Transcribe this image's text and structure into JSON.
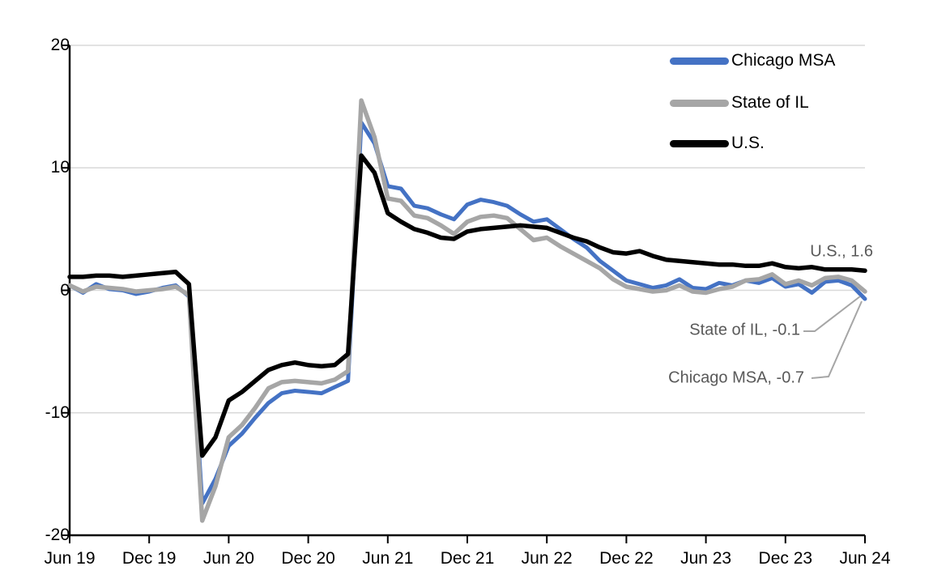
{
  "chart_data": {
    "type": "line",
    "title": "",
    "x_range_description": "Monthly data, Jun 2019 through Jun 2024 (61 points)",
    "x_tick_labels": [
      "Jun 19",
      "Dec 19",
      "Jun 20",
      "Dec 20",
      "Jun 21",
      "Dec 21",
      "Jun 22",
      "Dec 22",
      "Jun 23",
      "Dec 23",
      "Jun 24"
    ],
    "y_tick_labels": [
      "20",
      "10",
      "0",
      "-10",
      "-20"
    ],
    "y_tick_values": [
      20,
      10,
      0,
      -10,
      -20
    ],
    "gridline_values": [
      20,
      10,
      0,
      -10
    ],
    "ylim": [
      -20,
      20
    ],
    "grid": "horizontal",
    "legend_position": "top-right-inside",
    "series": [
      {
        "name": "Chicago MSA",
        "color": "#4472C4",
        "stroke_width": 5,
        "values": [
          0.4,
          -0.2,
          0.5,
          0.1,
          0.0,
          -0.3,
          -0.1,
          0.2,
          0.4,
          -0.5,
          -17.4,
          -15.4,
          -12.7,
          -11.7,
          -10.4,
          -9.2,
          -8.4,
          -8.2,
          -8.3,
          -8.4,
          -7.9,
          -7.4,
          13.7,
          12.0,
          8.5,
          8.3,
          6.9,
          6.7,
          6.2,
          5.8,
          7.0,
          7.4,
          7.2,
          6.9,
          6.2,
          5.6,
          5.8,
          5.0,
          4.2,
          3.5,
          2.4,
          1.6,
          0.8,
          0.5,
          0.2,
          0.4,
          0.9,
          0.2,
          0.1,
          0.6,
          0.4,
          0.8,
          0.6,
          1.0,
          0.3,
          0.5,
          -0.2,
          0.7,
          0.8,
          0.4,
          -0.7
        ]
      },
      {
        "name": "State of IL",
        "color": "#A6A6A6",
        "stroke_width": 5.5,
        "values": [
          0.4,
          -0.1,
          0.3,
          0.2,
          0.1,
          -0.1,
          0.0,
          0.1,
          0.3,
          -0.4,
          -18.8,
          -16.0,
          -12.0,
          -11.0,
          -9.6,
          -8.0,
          -7.5,
          -7.4,
          -7.5,
          -7.6,
          -7.3,
          -6.6,
          15.5,
          12.5,
          7.5,
          7.3,
          6.1,
          5.9,
          5.3,
          4.6,
          5.6,
          6.0,
          6.1,
          5.9,
          5.0,
          4.1,
          4.3,
          3.6,
          3.0,
          2.4,
          1.8,
          0.9,
          0.3,
          0.1,
          -0.1,
          0.0,
          0.4,
          -0.1,
          -0.2,
          0.1,
          0.3,
          0.8,
          0.9,
          1.3,
          0.5,
          0.8,
          0.4,
          1.0,
          1.1,
          0.8,
          -0.1
        ]
      },
      {
        "name": "U.S.",
        "color": "#000000",
        "stroke_width": 5.5,
        "values": [
          1.1,
          1.1,
          1.2,
          1.2,
          1.1,
          1.2,
          1.3,
          1.4,
          1.5,
          0.5,
          -13.5,
          -12.0,
          -9.0,
          -8.3,
          -7.4,
          -6.5,
          -6.1,
          -5.9,
          -6.1,
          -6.2,
          -6.1,
          -5.2,
          11.0,
          9.6,
          6.3,
          5.6,
          5.0,
          4.7,
          4.3,
          4.2,
          4.8,
          5.0,
          5.1,
          5.2,
          5.3,
          5.2,
          5.1,
          4.7,
          4.3,
          4.0,
          3.5,
          3.1,
          3.0,
          3.2,
          2.8,
          2.5,
          2.4,
          2.3,
          2.2,
          2.1,
          2.1,
          2.0,
          2.0,
          2.2,
          1.9,
          1.8,
          1.9,
          1.7,
          1.7,
          1.7,
          1.6
        ]
      }
    ],
    "annotations": [
      {
        "text": "U.S., 1.6",
        "series": "U.S.",
        "value": 1.6
      },
      {
        "text": "State of IL, -0.1",
        "series": "State of IL",
        "value": -0.1
      },
      {
        "text": "Chicago MSA, -0.7",
        "series": "Chicago MSA",
        "value": -0.7
      }
    ]
  },
  "colors": {
    "gridline": "#D9D9D9",
    "axis": "#000000",
    "annotation_text": "#595959",
    "leader_line": "#A6A6A6",
    "background": "#FFFFFF"
  }
}
